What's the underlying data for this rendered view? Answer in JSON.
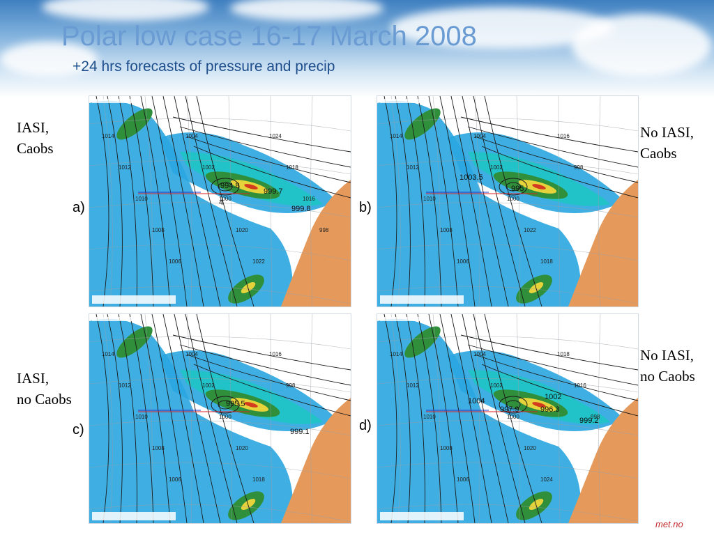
{
  "slide": {
    "title": "Polar low case 16-17 March 2008",
    "subtitle": "+24 hrs forecasts of pressure and precip",
    "logo": "met.no"
  },
  "panels": [
    {
      "letter": "a)",
      "label_lines": [
        "IASI,",
        "Caobs"
      ],
      "isobar_labels": [
        "1014",
        "1012",
        "1010",
        "1008",
        "1006",
        "1004",
        "1002",
        "1000",
        "1020",
        "1022",
        "1024",
        "1018",
        "1016",
        "998"
      ],
      "pressure_values": [
        "994.8",
        "999.7",
        "999.8",
        "4"
      ]
    },
    {
      "letter": "b)",
      "label_lines": [
        "No IASI,",
        "Caobs"
      ],
      "isobar_labels": [
        "1014",
        "1012",
        "1010",
        "1008",
        "1006",
        "1004",
        "1002",
        "1000",
        "1022",
        "1018",
        "1016",
        "998"
      ],
      "pressure_values": [
        "1003.5",
        "995"
      ]
    },
    {
      "letter": "c)",
      "label_lines": [
        "IASI,",
        "no Caobs"
      ],
      "isobar_labels": [
        "1014",
        "1012",
        "1010",
        "1008",
        "1006",
        "1004",
        "1002",
        "1000",
        "1020",
        "1018",
        "1016",
        "998"
      ],
      "pressure_values": [
        "995.5",
        "999.1"
      ]
    },
    {
      "letter": "d)",
      "label_lines": [
        "No IASI,",
        "no Caobs"
      ],
      "isobar_labels": [
        "1014",
        "1012",
        "1010",
        "1008",
        "1006",
        "1004",
        "1002",
        "1000",
        "1020",
        "1024",
        "1018",
        "1016",
        "998"
      ],
      "pressure_values": [
        "1004",
        "997.9",
        "996.3",
        "999.2",
        "1002"
      ]
    }
  ],
  "colors": {
    "title": "#6a9bd2",
    "subtitle": "#1e4e8c",
    "precip_light": "#2aa6e0",
    "precip_mid": "#22c3c8",
    "precip_green": "#2f8f3a",
    "precip_yellow": "#e6d23a",
    "precip_red": "#d43a1e",
    "land": "#e59a5c",
    "ocean_bg": "#ffffff",
    "logo": "#c0282d"
  }
}
